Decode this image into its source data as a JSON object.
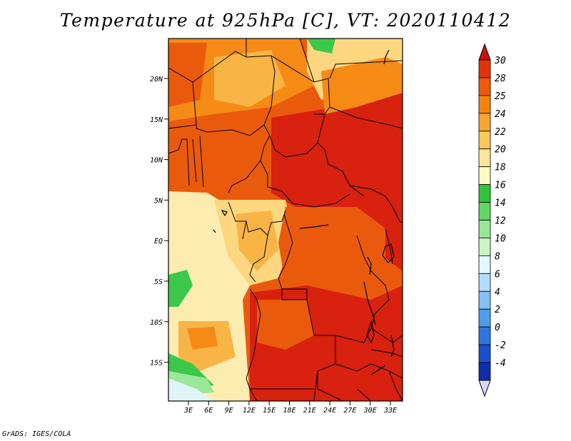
{
  "title": "Temperature at 925hPa [C], VT: 2020110412",
  "credit": "GrADS: IGES/COLA",
  "lat_ticks": [
    "20N",
    "15N",
    "10N",
    "5N",
    "EQ",
    "5S",
    "10S",
    "15S"
  ],
  "lon_ticks": [
    "3E",
    "6E",
    "9E",
    "12E",
    "15E",
    "18E",
    "21E",
    "24E",
    "27E",
    "30E",
    "33E"
  ],
  "colorbar": {
    "labels": [
      "30",
      "28",
      "25",
      "24",
      "22",
      "20",
      "18",
      "16",
      "14",
      "12",
      "10",
      "8",
      "6",
      "4",
      "2",
      "0",
      "-2",
      "-4"
    ],
    "colors": [
      "#c8140f",
      "#e6320a",
      "#f05a0a",
      "#f5820f",
      "#f9a530",
      "#fbc85a",
      "#fde699",
      "#fffbc0",
      "#30c43a",
      "#61d863",
      "#96e895",
      "#c8f5c3",
      "#e2f7ff",
      "#b3dcfa",
      "#82c0f5",
      "#4f9ded",
      "#2f76e2",
      "#1b4fcf",
      "#0d2fab",
      "#081a6e"
    ],
    "top_arrow_color": "#c8140f",
    "bottom_arrow_color": "#d8d8f8"
  },
  "field_colors": {
    "hot": "#d8210f",
    "warm": "#ea5a0d",
    "mid": "#f58a15",
    "light": "#f9b446",
    "pale": "#fcd77f",
    "cream": "#fdecb0",
    "green": "#3cc84a",
    "lightgreen": "#9ae89a",
    "paleblue": "#dff4f4"
  }
}
